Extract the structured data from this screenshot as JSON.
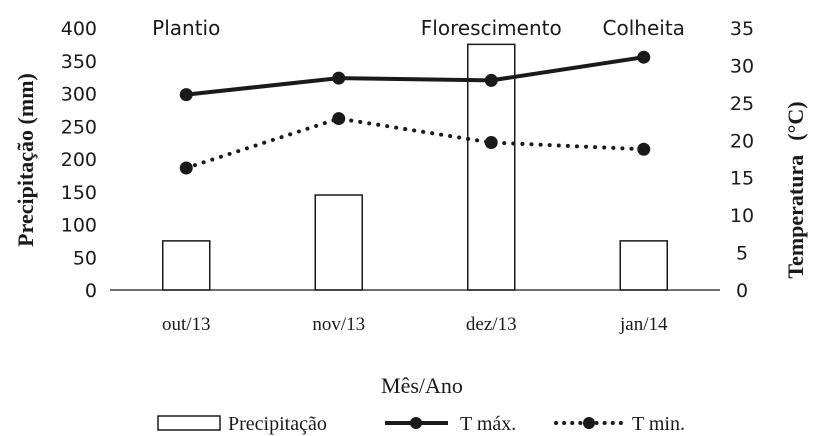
{
  "chart_data": {
    "type": "bar+line",
    "categories": [
      "out/13",
      "nov/13",
      "dez/13",
      "jan/14"
    ],
    "xlabel": "Mês/Ano",
    "y_left": {
      "label": "Precipitação (mm)",
      "range": [
        0,
        400
      ],
      "ticks": [
        0,
        50,
        100,
        150,
        200,
        250,
        300,
        350,
        400
      ]
    },
    "y_right": {
      "label": "Temperatura",
      "label_unit": "(°C)",
      "range": [
        0,
        35
      ],
      "ticks": [
        0,
        5,
        10,
        15,
        20,
        25,
        30,
        35
      ]
    },
    "series": [
      {
        "name": "Precipitação",
        "kind": "bar",
        "axis": "left",
        "values": [
          75,
          145,
          375,
          75
        ]
      },
      {
        "name": "T máx.",
        "kind": "line",
        "style": "solid",
        "axis": "right",
        "values": [
          26.1,
          28.3,
          28.0,
          31.1
        ]
      },
      {
        "name": "T min.",
        "kind": "line",
        "style": "dotted",
        "axis": "right",
        "values": [
          16.3,
          22.9,
          19.7,
          18.8
        ]
      }
    ],
    "annotations": [
      {
        "text": "Plantio",
        "category": "out/13"
      },
      {
        "text": "Florescimento",
        "category": "dez/13"
      },
      {
        "text": "Colheita",
        "category": "jan/14"
      }
    ],
    "grid": false,
    "legend_position": "bottom",
    "colors": {
      "bar_fill": "#ffffff",
      "stroke": "#1a1a1a"
    }
  }
}
